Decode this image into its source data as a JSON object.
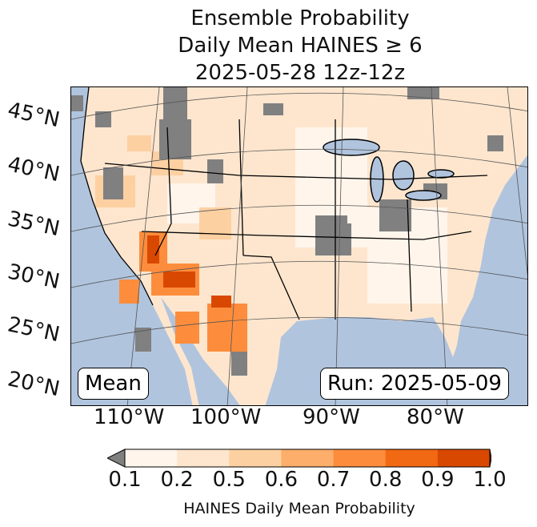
{
  "title": {
    "line1": "Ensemble Probability",
    "line2": "Daily Mean HAINES ≥ 6",
    "line3": "2025-05-28 12z-12z"
  },
  "map": {
    "lat_labels": [
      "45°N",
      "40°N",
      "35°N",
      "30°N",
      "25°N",
      "20°N"
    ],
    "lon_labels": [
      "110°W",
      "100°W",
      "90°W",
      "80°W"
    ],
    "mean_label": "Mean",
    "run_label": "Run: 2025-05-09",
    "colors": {
      "ocean": "#b0c4de",
      "land": "#fee6ce",
      "missing": "#808080"
    }
  },
  "colorbar": {
    "ticks": [
      "0.1",
      "0.2",
      "0.5",
      "0.6",
      "0.7",
      "0.8",
      "0.9",
      "1.0"
    ],
    "colors": [
      "#fff5eb",
      "#fee6ce",
      "#fdd0a2",
      "#fdae6b",
      "#fd8d3c",
      "#f16913",
      "#d94801"
    ],
    "under_color": "#808080",
    "over_color": "#8c2d04",
    "label": "HAINES Daily Mean Probability"
  }
}
